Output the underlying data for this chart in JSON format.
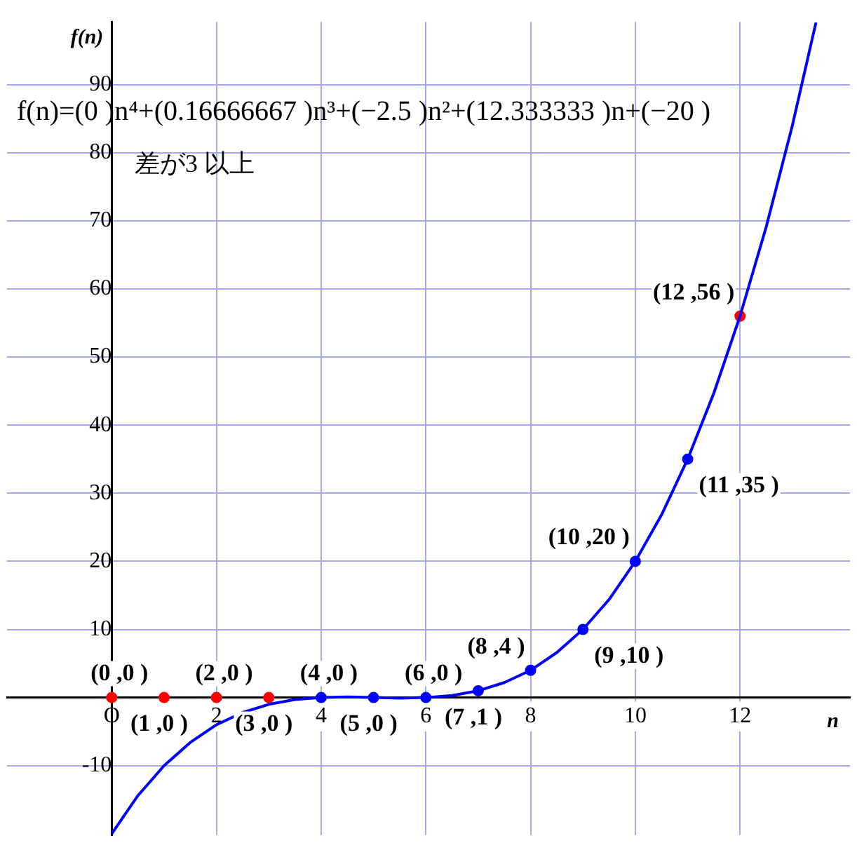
{
  "chart_data": {
    "type": "line",
    "xlabel": "n",
    "ylabel": "f(n)",
    "xlim": [
      -2,
      14.1
    ],
    "ylim": [
      -20.2,
      99.2
    ],
    "xticks": [
      {
        "value": 0,
        "label": "O"
      },
      2,
      4,
      6,
      8,
      10,
      12
    ],
    "yticks": [
      -10,
      {
        "value": 0,
        "label": null
      },
      10,
      20,
      30,
      40,
      50,
      60,
      70,
      80,
      90
    ],
    "grid": true,
    "legend": false,
    "series": [
      {
        "type": "line",
        "color": "#0000ff",
        "marker": "none",
        "x": [
          0,
          0.5,
          1,
          1.5,
          2,
          2.5,
          3,
          3.5,
          4,
          4.5,
          5,
          5.5,
          6,
          6.5,
          7,
          7.5,
          8,
          8.5,
          9,
          9.5,
          10,
          10.5,
          11,
          11.5,
          12,
          12.5,
          13,
          13.45
        ],
        "values": [
          -20,
          -14.4,
          -10,
          -6.6,
          -4,
          -2.2,
          -1,
          -0.3,
          0,
          0.1,
          0,
          -0.1,
          0,
          0.3,
          1,
          2.2,
          4,
          6.6,
          10,
          14.4,
          20,
          26.8,
          35,
          44.7,
          56,
          69.1,
          84,
          99.1
        ]
      },
      {
        "type": "scatter",
        "color": "#ff0000",
        "marker": "circle",
        "x": [
          0,
          1,
          2,
          3,
          12
        ],
        "values": [
          0,
          0,
          0,
          0,
          56
        ]
      },
      {
        "type": "scatter",
        "color": "#0000ff",
        "marker": "circle",
        "x": [
          4,
          5,
          6,
          7,
          8,
          9,
          10,
          11
        ],
        "values": [
          0,
          0,
          0,
          1,
          4,
          10,
          20,
          35
        ]
      }
    ],
    "annotations": [
      "f(n)=(0 )n⁴+(0.16666667 )n³+(−2.5 )n²+(12.333333 )n+(−20 )",
      "差が3 以上",
      {
        "text": "(0 ,0 )",
        "x": 0,
        "y": 0
      },
      {
        "text": "(1 ,0 )",
        "x": 1,
        "y": 0
      },
      {
        "text": "(2 ,0 )",
        "x": 2,
        "y": 0
      },
      {
        "text": "(3 ,0 )",
        "x": 3,
        "y": 0
      },
      {
        "text": "(4 ,0 )",
        "x": 4,
        "y": 0
      },
      {
        "text": "(5 ,0 )",
        "x": 5,
        "y": 0
      },
      {
        "text": "(6 ,0 )",
        "x": 6,
        "y": 0
      },
      {
        "text": "(7 ,1 )",
        "x": 7,
        "y": 1
      },
      {
        "text": "(8 ,4 )",
        "x": 8,
        "y": 4
      },
      {
        "text": "(9 ,10 )",
        "x": 9,
        "y": 10
      },
      {
        "text": "(10 ,20 )",
        "x": 10,
        "y": 20
      },
      {
        "text": "(11 ,35 )",
        "x": 11,
        "y": 35
      },
      {
        "text": "(12 ,56 )",
        "x": 12,
        "y": 56
      }
    ]
  }
}
